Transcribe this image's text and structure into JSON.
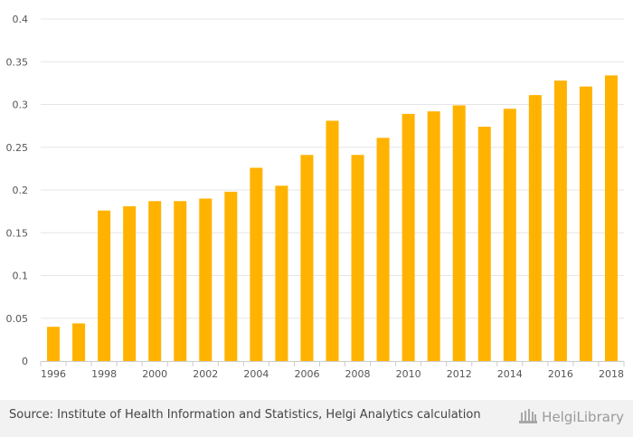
{
  "chart_data": {
    "type": "bar",
    "categories": [
      "1996",
      "1997",
      "1998",
      "1999",
      "2000",
      "2001",
      "2002",
      "2003",
      "2004",
      "2005",
      "2006",
      "2007",
      "2008",
      "2009",
      "2010",
      "2011",
      "2012",
      "2013",
      "2014",
      "2015",
      "2016",
      "2017",
      "2018"
    ],
    "x_tick_labels": [
      "1996",
      "1998",
      "2000",
      "2002",
      "2004",
      "2006",
      "2008",
      "2010",
      "2012",
      "2014",
      "2016",
      "2018"
    ],
    "values": [
      0.04,
      0.044,
      0.176,
      0.181,
      0.187,
      0.187,
      0.19,
      0.198,
      0.226,
      0.205,
      0.241,
      0.281,
      0.241,
      0.261,
      0.289,
      0.292,
      0.299,
      0.274,
      0.295,
      0.311,
      0.328,
      0.321,
      0.334
    ],
    "ylim": [
      0,
      0.4
    ],
    "yticks": [
      0,
      0.05,
      0.1,
      0.15,
      0.2,
      0.25,
      0.3,
      0.35,
      0.4
    ],
    "ytick_labels": [
      "0",
      "0.05",
      "0.1",
      "0.15",
      "0.2",
      "0.25",
      "0.3",
      "0.35",
      "0.4"
    ],
    "title": "",
    "xlabel": "",
    "ylabel": "",
    "grid": true,
    "legend": "none",
    "bar_color": "#FFB300"
  },
  "footer": {
    "source": "Source: Institute of Health Information and Statistics, Helgi Analytics calculation",
    "logo_text": "HelgiLibrary"
  }
}
